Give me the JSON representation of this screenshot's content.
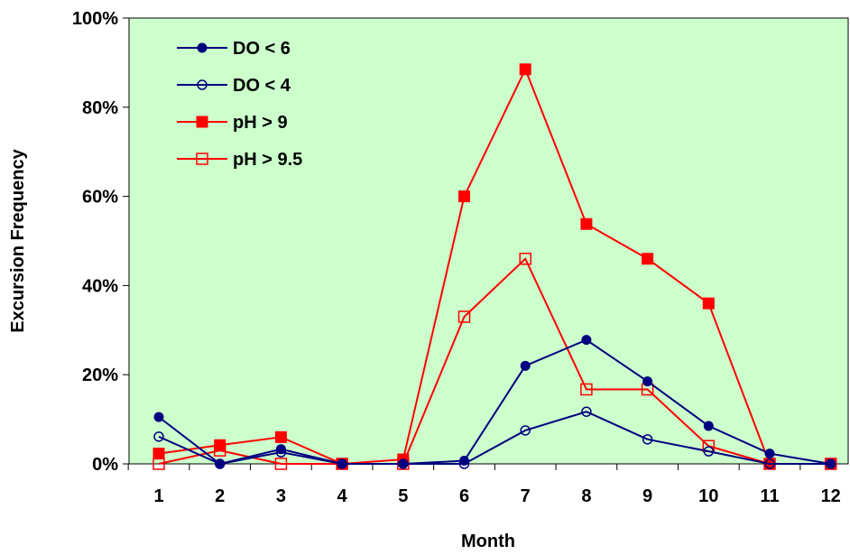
{
  "chart_data": {
    "type": "line",
    "xlabel": "Month",
    "ylabel": "Excursion Frequency",
    "categories": [
      "1",
      "2",
      "3",
      "4",
      "5",
      "6",
      "7",
      "8",
      "9",
      "10",
      "11",
      "12"
    ],
    "ylim": [
      0,
      100
    ],
    "yticks": [
      "0%",
      "20%",
      "40%",
      "60%",
      "80%",
      "100%"
    ],
    "plot_background": "#ccffcc",
    "legend_position": "top-left",
    "grid": false,
    "series": [
      {
        "name": "DO < 6",
        "color": "#000080",
        "marker": "filled-circle",
        "values": [
          10.5,
          0,
          3.3,
          0,
          0,
          0.7,
          22,
          27.8,
          18.5,
          8.5,
          2.3,
          0
        ]
      },
      {
        "name": "DO < 4",
        "color": "#000080",
        "marker": "open-circle",
        "values": [
          6.1,
          0,
          2.6,
          0,
          0,
          0,
          7.5,
          11.7,
          5.5,
          2.8,
          0,
          0
        ]
      },
      {
        "name": "pH > 9",
        "color": "#ff0000",
        "marker": "filled-square",
        "values": [
          2.3,
          4.2,
          6,
          0,
          1,
          60,
          88.5,
          53.8,
          46,
          36,
          0,
          0
        ]
      },
      {
        "name": "pH > 9.5",
        "color": "#ff0000",
        "marker": "open-square",
        "values": [
          0,
          3,
          0,
          0,
          0,
          33,
          46,
          16.7,
          16.7,
          4,
          0,
          0
        ]
      }
    ]
  }
}
